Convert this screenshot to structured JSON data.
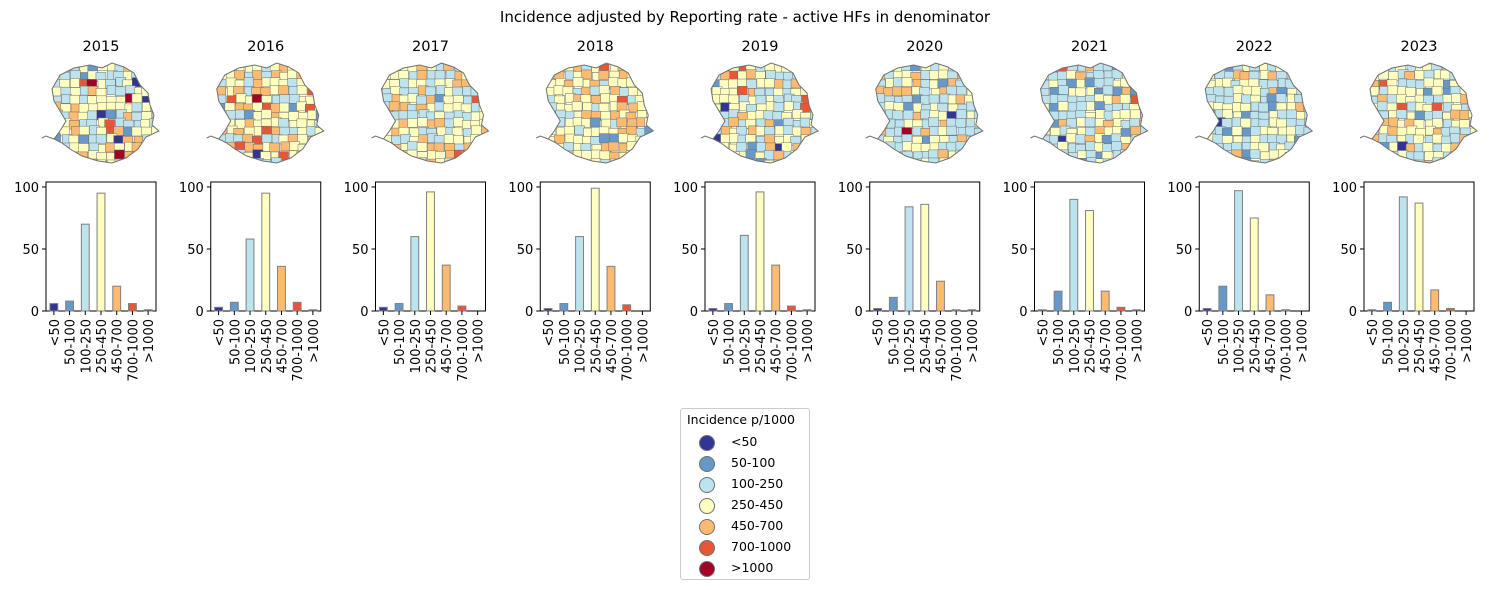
{
  "figure": {
    "title": "Incidence adjusted by Reporting rate - active HFs in denominator"
  },
  "legend": {
    "title": "Incidence p/1000",
    "items": [
      {
        "label": "<50",
        "color": "#313695"
      },
      {
        "label": "50-100",
        "color": "#6699c8"
      },
      {
        "label": "100-250",
        "color": "#bde3ee"
      },
      {
        "label": "250-450",
        "color": "#ffffc0"
      },
      {
        "label": "450-700",
        "color": "#fdbb72"
      },
      {
        "label": "700-1000",
        "color": "#e85638"
      },
      {
        "label": ">1000",
        "color": "#a50026"
      }
    ]
  },
  "chart_data": [
    {
      "type": "bar",
      "title": "2015",
      "categories": [
        "<50",
        "50-100",
        "100-250",
        "250-450",
        "450-700",
        "700-1000",
        ">1000"
      ],
      "values": [
        6,
        8,
        70,
        95,
        20,
        6,
        1
      ],
      "yticks": [
        0,
        50,
        100
      ],
      "ylim": [
        0,
        104
      ]
    },
    {
      "type": "bar",
      "title": "2016",
      "categories": [
        "<50",
        "50-100",
        "100-250",
        "250-450",
        "450-700",
        "700-1000",
        ">1000"
      ],
      "values": [
        3,
        7,
        58,
        95,
        36,
        7,
        1
      ],
      "yticks": [
        0,
        50,
        100
      ],
      "ylim": [
        0,
        104
      ]
    },
    {
      "type": "bar",
      "title": "2017",
      "categories": [
        "<50",
        "50-100",
        "100-250",
        "250-450",
        "450-700",
        "700-1000",
        ">1000"
      ],
      "values": [
        3,
        6,
        60,
        96,
        37,
        4,
        0
      ],
      "yticks": [
        0,
        50,
        100
      ],
      "ylim": [
        0,
        104
      ]
    },
    {
      "type": "bar",
      "title": "2018",
      "categories": [
        "<50",
        "50-100",
        "100-250",
        "250-450",
        "450-700",
        "700-1000",
        ">1000"
      ],
      "values": [
        2,
        6,
        60,
        99,
        36,
        5,
        0
      ],
      "yticks": [
        0,
        50,
        100
      ],
      "ylim": [
        0,
        104
      ]
    },
    {
      "type": "bar",
      "title": "2019",
      "categories": [
        "<50",
        "50-100",
        "100-250",
        "250-450",
        "450-700",
        "700-1000",
        ">1000"
      ],
      "values": [
        2,
        6,
        61,
        96,
        37,
        4,
        1
      ],
      "yticks": [
        0,
        50,
        100
      ],
      "ylim": [
        0,
        104
      ]
    },
    {
      "type": "bar",
      "title": "2020",
      "categories": [
        "<50",
        "50-100",
        "100-250",
        "250-450",
        "450-700",
        "700-1000",
        ">1000"
      ],
      "values": [
        2,
        11,
        84,
        86,
        24,
        1,
        1
      ],
      "yticks": [
        0,
        50,
        100
      ],
      "ylim": [
        0,
        104
      ]
    },
    {
      "type": "bar",
      "title": "2021",
      "categories": [
        "<50",
        "50-100",
        "100-250",
        "250-450",
        "450-700",
        "700-1000",
        ">1000"
      ],
      "values": [
        1,
        16,
        90,
        81,
        16,
        3,
        1
      ],
      "yticks": [
        0,
        50,
        100
      ],
      "ylim": [
        0,
        104
      ]
    },
    {
      "type": "bar",
      "title": "2022",
      "categories": [
        "<50",
        "50-100",
        "100-250",
        "250-450",
        "450-700",
        "700-1000",
        ">1000"
      ],
      "values": [
        2,
        20,
        97,
        75,
        13,
        1,
        0
      ],
      "yticks": [
        0,
        50,
        100
      ],
      "ylim": [
        0,
        104
      ]
    },
    {
      "type": "bar",
      "title": "2023",
      "categories": [
        "<50",
        "50-100",
        "100-250",
        "250-450",
        "450-700",
        "700-1000",
        ">1000"
      ],
      "values": [
        1,
        7,
        92,
        87,
        17,
        2,
        0
      ],
      "yticks": [
        0,
        50,
        100
      ],
      "ylim": [
        0,
        104
      ]
    }
  ]
}
